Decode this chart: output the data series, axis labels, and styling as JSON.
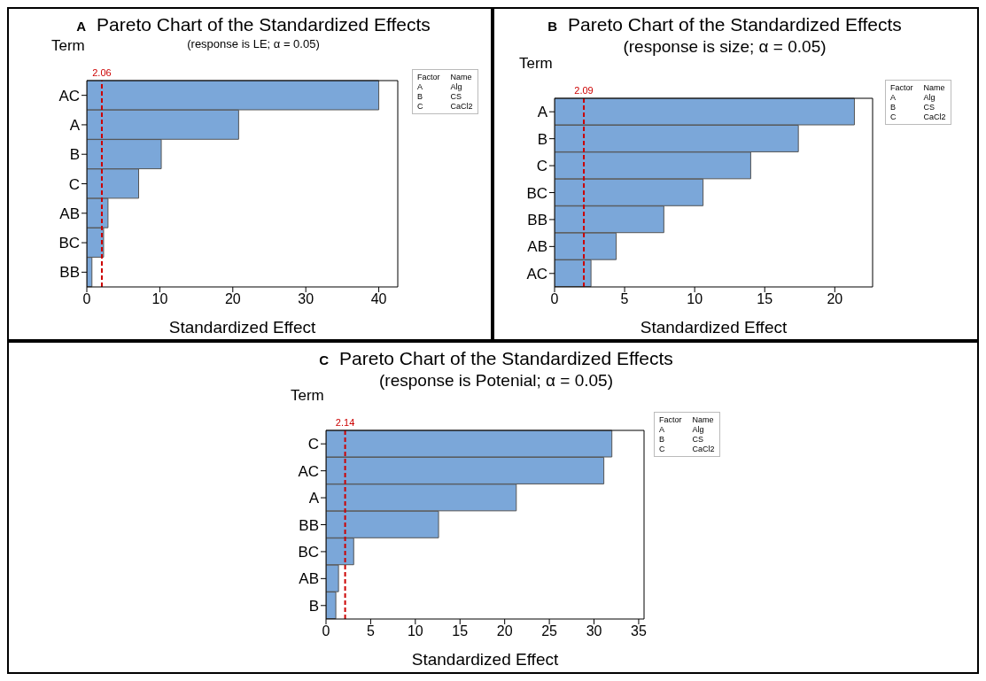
{
  "chart_data": [
    {
      "type": "bar",
      "orientation": "horizontal",
      "title": "Pareto Chart of the Standardized Effects",
      "subtitle": "(response is LE; α = 0.05)",
      "xlabel": "Standardized Effect",
      "ylabel": "Term",
      "categories": [
        "AC",
        "A",
        "B",
        "C",
        "AB",
        "BC",
        "BB"
      ],
      "values": [
        40.0,
        20.8,
        10.2,
        7.1,
        2.9,
        2.3,
        0.7
      ],
      "color": "#7ba7d9",
      "xlim": [
        0,
        42.6
      ],
      "xticks": [
        0,
        10,
        20,
        30,
        40
      ],
      "grid": false,
      "ref_lines": [
        {
          "axis": "x",
          "value": 2.06,
          "label": "2.06",
          "color": "#cc0000",
          "line_style": "dashed"
        }
      ],
      "annotations": [
        "A",
        "Factor",
        "Name",
        "A",
        "Alg",
        "B",
        "CS",
        "C",
        "CaCl2"
      ]
    },
    {
      "type": "bar",
      "orientation": "horizontal",
      "title": "Pareto Chart of the Standardized Effects",
      "subtitle": "(response is size; α = 0.05)",
      "xlabel": "Standardized Effect",
      "ylabel": "Term",
      "categories": [
        "A",
        "B",
        "C",
        "BC",
        "BB",
        "AB",
        "AC"
      ],
      "values": [
        21.4,
        17.4,
        14.0,
        10.6,
        7.8,
        4.4,
        2.6
      ],
      "color": "#7ba7d9",
      "xlim": [
        0,
        22.7
      ],
      "xticks": [
        0,
        5,
        10,
        15,
        20
      ],
      "grid": false,
      "ref_lines": [
        {
          "axis": "x",
          "value": 2.09,
          "label": "2.09",
          "color": "#cc0000",
          "line_style": "dashed"
        }
      ],
      "annotations": [
        "B",
        "Factor",
        "Name",
        "A",
        "Alg",
        "B",
        "CS",
        "C",
        "CaCl2"
      ]
    },
    {
      "type": "bar",
      "orientation": "horizontal",
      "title": "Pareto Chart of the Standardized Effects",
      "subtitle": "(response is Potenial; α = 0.05)",
      "xlabel": "Standardized Effect",
      "ylabel": "Term",
      "categories": [
        "C",
        "AC",
        "A",
        "BB",
        "BC",
        "AB",
        "B"
      ],
      "values": [
        32.0,
        31.1,
        21.3,
        12.6,
        3.1,
        1.4,
        1.1
      ],
      "color": "#7ba7d9",
      "xlim": [
        0,
        35.6
      ],
      "xticks": [
        0,
        5,
        10,
        15,
        20,
        25,
        30,
        35
      ],
      "grid": false,
      "ref_lines": [
        {
          "axis": "x",
          "value": 2.14,
          "label": "2.14",
          "color": "#cc0000",
          "line_style": "dashed"
        }
      ],
      "annotations": [
        "C",
        "Factor",
        "Name",
        "A",
        "Alg",
        "B",
        "CS",
        "C",
        "CaCl2"
      ]
    }
  ]
}
